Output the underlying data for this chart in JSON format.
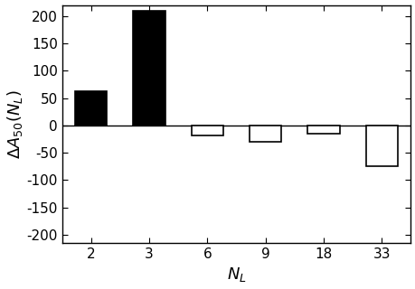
{
  "categories": [
    2,
    3,
    6,
    9,
    18,
    33
  ],
  "values": [
    63,
    210,
    -18,
    -30,
    -15,
    -75
  ],
  "bar_colors": [
    "black",
    "black",
    "white",
    "white",
    "white",
    "white"
  ],
  "bar_edgecolors": [
    "black",
    "black",
    "black",
    "black",
    "black",
    "black"
  ],
  "ylabel": "$\\Delta A_{50}(N_L)$",
  "xlabel": "$N_L$",
  "ylim": [
    -215,
    220
  ],
  "yticks": [
    -200,
    -150,
    -100,
    -50,
    0,
    50,
    100,
    150,
    200
  ],
  "xtick_labels": [
    "2",
    "3",
    "6",
    "9",
    "18",
    "33"
  ],
  "bar_width": 0.55,
  "title": "",
  "background_color": "#ffffff",
  "tick_fontsize": 11,
  "label_fontsize": 13
}
